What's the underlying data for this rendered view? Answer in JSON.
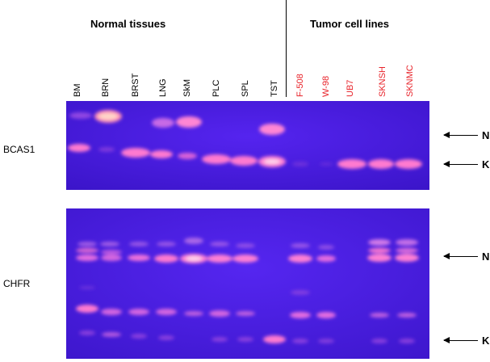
{
  "groups": {
    "normal": "Normal tissues",
    "tumor": "Tumor cell lines"
  },
  "lanes": [
    {
      "label": "BM",
      "color": "#000000"
    },
    {
      "label": "BRN",
      "color": "#000000"
    },
    {
      "label": "BRST",
      "color": "#000000"
    },
    {
      "label": "LNG",
      "color": "#000000"
    },
    {
      "label": "SkM",
      "color": "#000000"
    },
    {
      "label": "PLC",
      "color": "#000000"
    },
    {
      "label": "SPL",
      "color": "#000000"
    },
    {
      "label": "TST",
      "color": "#000000"
    },
    {
      "label": "F-508",
      "color": "#e8232a"
    },
    {
      "label": "W-98",
      "color": "#e8232a"
    },
    {
      "label": "UB7",
      "color": "#e8232a"
    },
    {
      "label": "SKNSH",
      "color": "#e8232a"
    },
    {
      "label": "SKNMC",
      "color": "#e8232a"
    }
  ],
  "gels": {
    "bcas1": {
      "label": "BCAS1",
      "marker_top": "N",
      "marker_bottom": "K"
    },
    "chfr": {
      "label": "CHFR",
      "marker_top": "N",
      "marker_bottom": "K"
    }
  },
  "colors": {
    "gel_background": "#4a1fe0",
    "band": "#ff7ad0",
    "band_bright": "#ffd4ec",
    "tumor_label": "#e8232a"
  }
}
